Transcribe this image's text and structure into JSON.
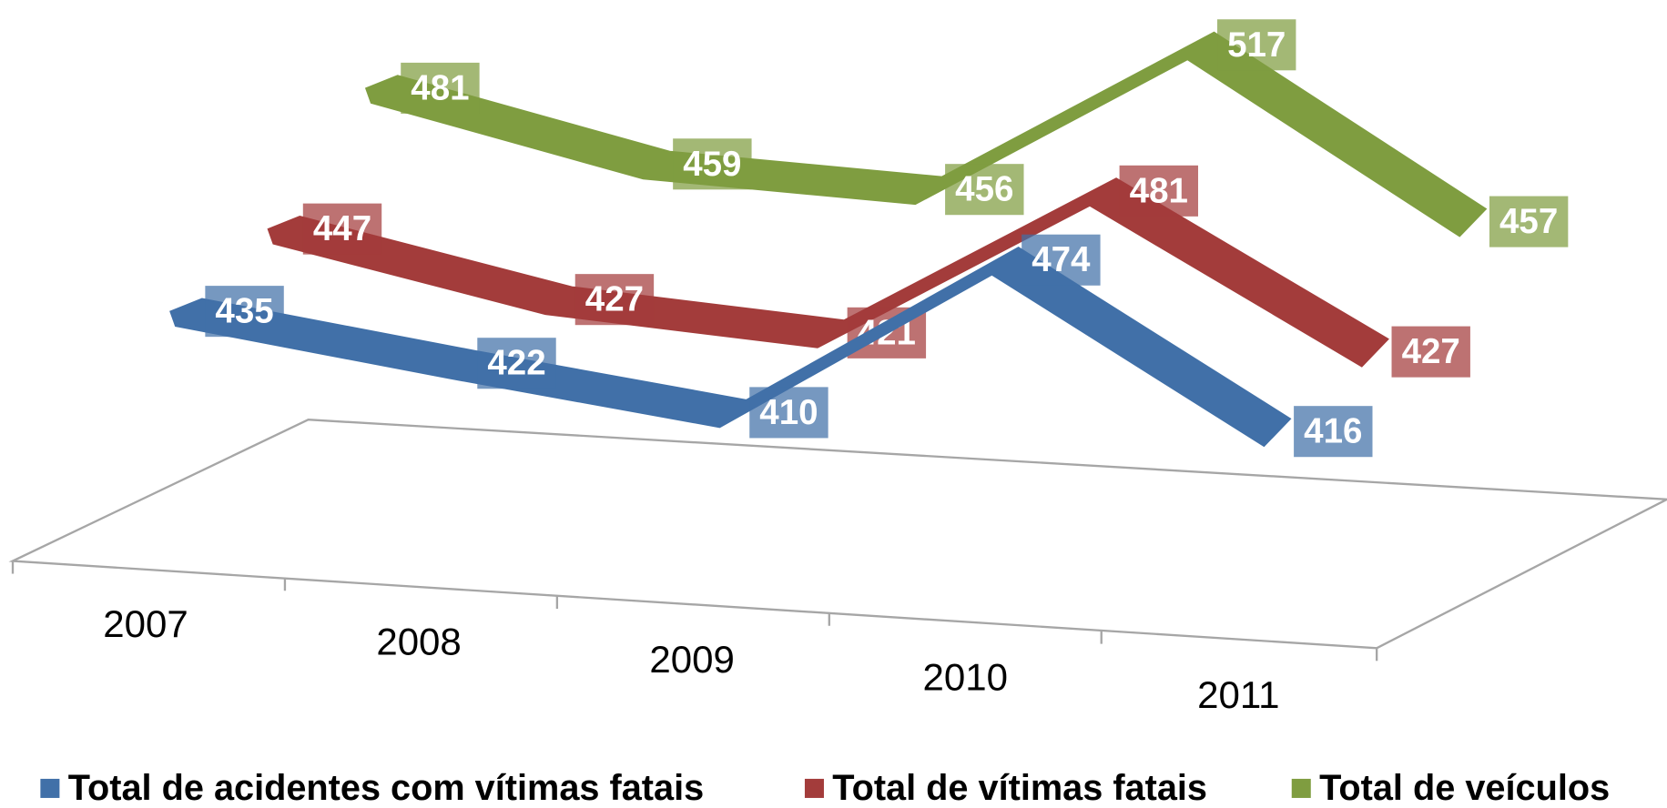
{
  "chart_data": {
    "type": "line3d",
    "categories": [
      "2007",
      "2008",
      "2009",
      "2010",
      "2011"
    ],
    "series": [
      {
        "name": "Total de acidentes com vítimas fatais",
        "color": "#4170a8",
        "values": [
          435,
          422,
          410,
          474,
          416
        ]
      },
      {
        "name": "Total de vítimas fatais",
        "color": "#a33c3b",
        "values": [
          447,
          427,
          421,
          481,
          427
        ]
      },
      {
        "name": "Total de veículos",
        "color": "#7f9d40",
        "values": [
          481,
          459,
          456,
          517,
          457
        ]
      }
    ],
    "legend": "bottom"
  }
}
